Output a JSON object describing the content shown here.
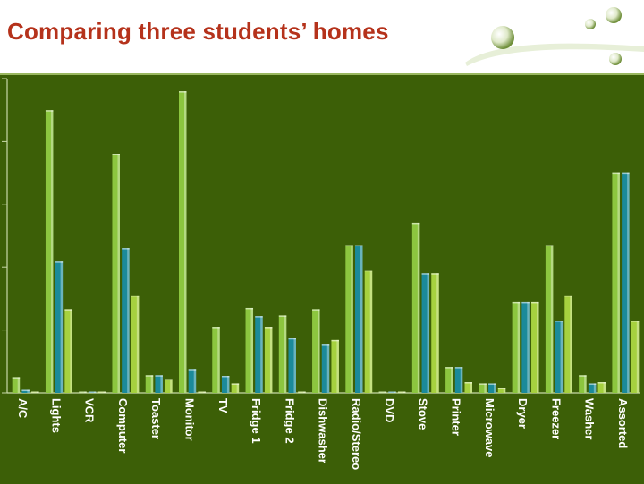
{
  "slide": {
    "title": "Comparing three students’ homes"
  },
  "colors": {
    "title": "#b5321b",
    "background": "#3c5f07",
    "series": [
      "#8cc63f",
      "#1b8a9a",
      "#a6d13f"
    ]
  },
  "chart_data": {
    "type": "bar",
    "title": "",
    "xlabel": "",
    "ylabel": "",
    "ylim": [
      0,
      5
    ],
    "grid": false,
    "legend": "none",
    "categories": [
      "A/C",
      "Lights",
      "VCR",
      "Computer",
      "Toaster",
      "Monitor",
      "TV",
      "Fridge 1",
      "Fridge 2",
      "Dishwasher",
      "Radio/Stereo",
      "DVD",
      "Stove",
      "Printer",
      "Microwave",
      "Dryer",
      "Freezer",
      "Washer",
      "Assorted"
    ],
    "series": [
      {
        "values": [
          0.25,
          4.5,
          0.02,
          3.8,
          0.28,
          4.8,
          1.05,
          1.35,
          1.23,
          1.33,
          2.35,
          0.02,
          2.7,
          0.41,
          0.15,
          1.45,
          2.35,
          0.28,
          3.5
        ]
      },
      {
        "values": [
          0.05,
          2.1,
          0.02,
          2.3,
          0.28,
          0.38,
          0.27,
          1.22,
          0.87,
          0.78,
          2.35,
          0.02,
          1.9,
          0.41,
          0.15,
          1.45,
          1.15,
          0.15,
          3.5
        ]
      },
      {
        "values": [
          0.02,
          1.33,
          0.02,
          1.55,
          0.22,
          0.0,
          0.15,
          1.05,
          0.0,
          0.84,
          1.95,
          0.02,
          1.9,
          0.17,
          0.08,
          1.45,
          1.55,
          0.17,
          1.15
        ]
      }
    ]
  }
}
